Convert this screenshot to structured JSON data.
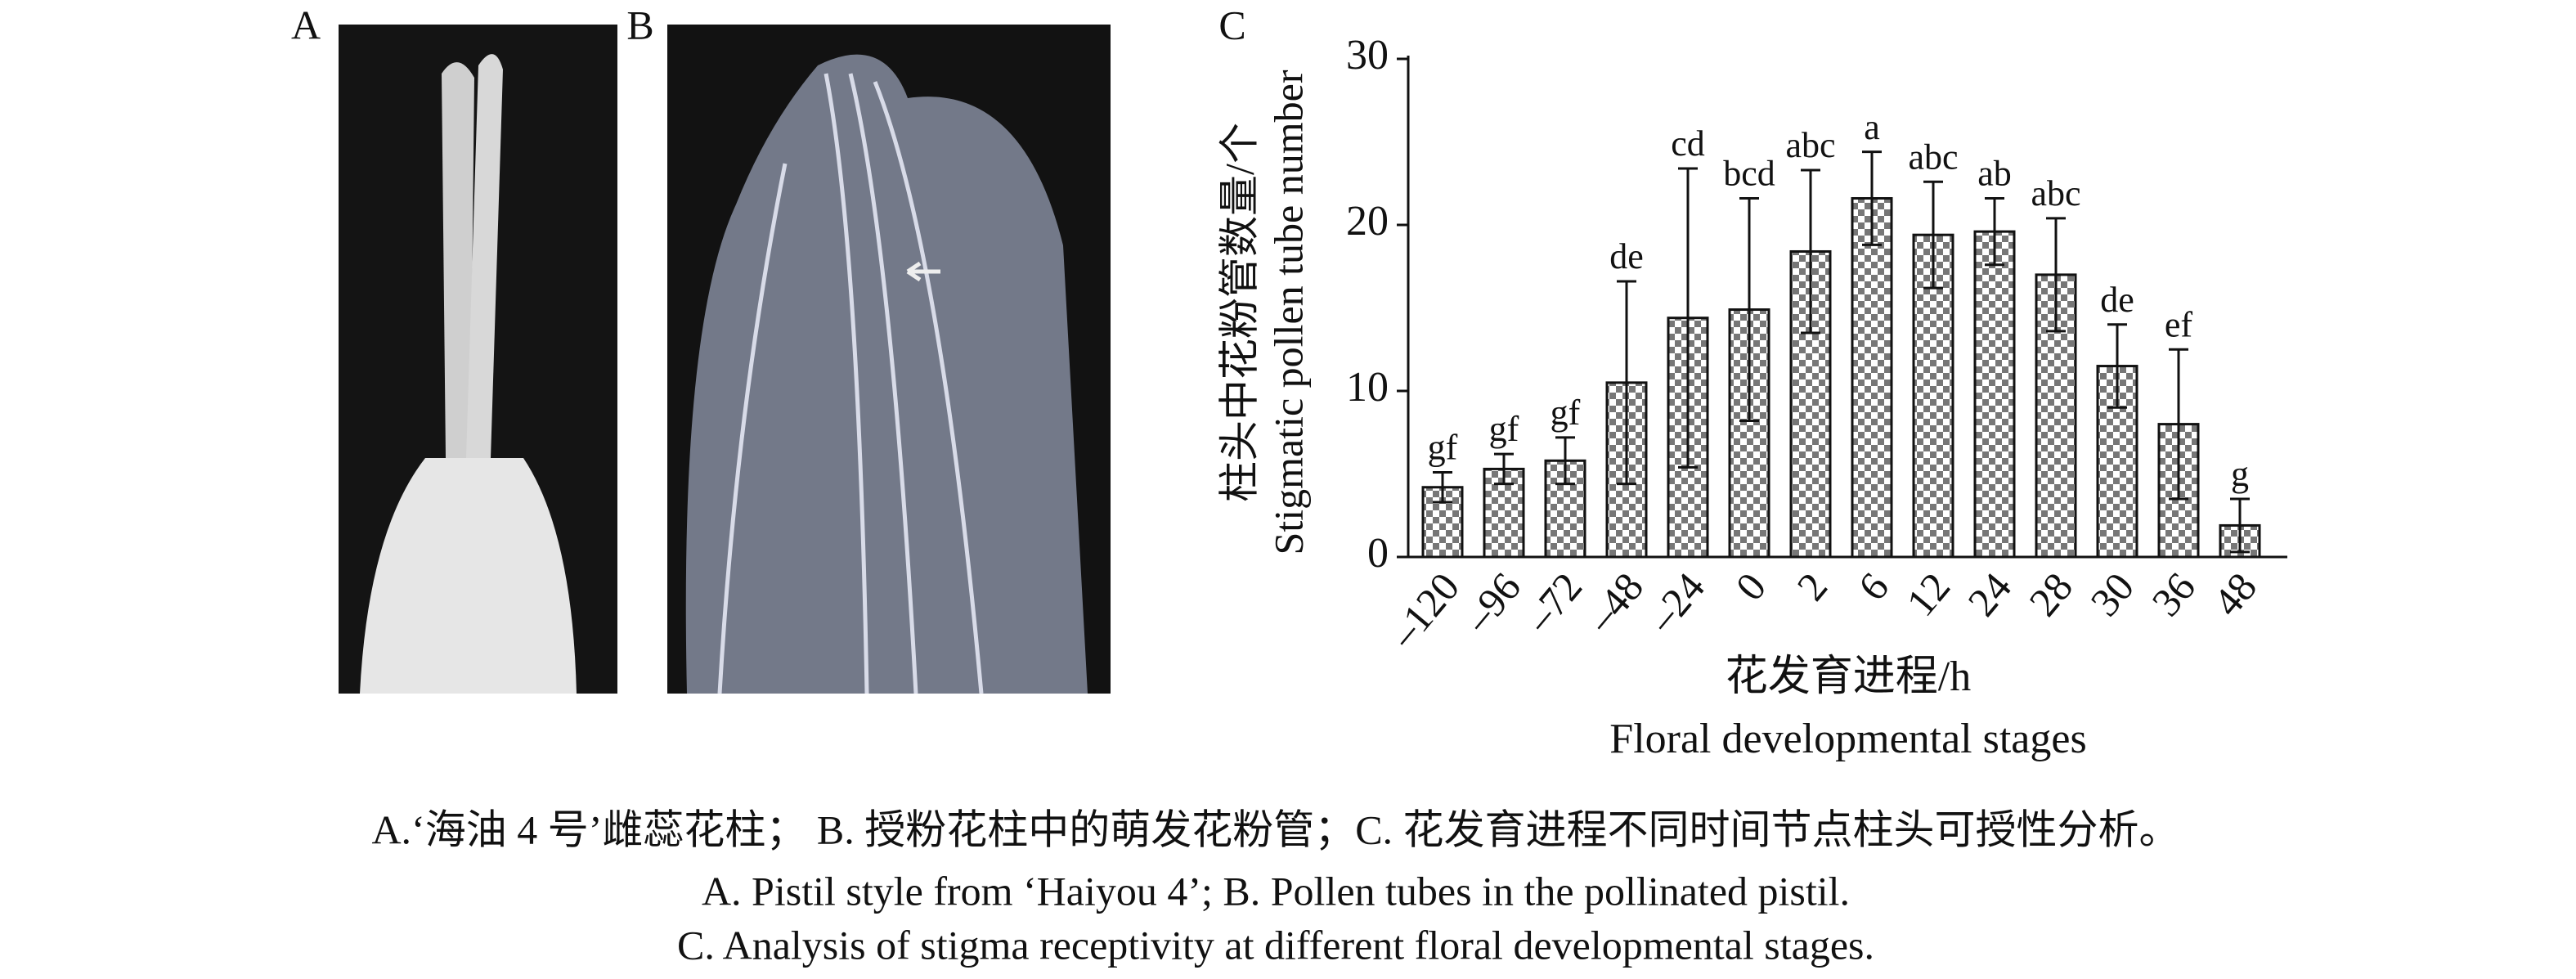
{
  "panel_labels": [
    "A",
    "B",
    "C"
  ],
  "chart_data": {
    "type": "bar",
    "ylabel": [
      "柱头中花粉管数量/个",
      "Stigmatic pollen tube number"
    ],
    "xlabel": [
      "花发育进程/h",
      "Floral developmental stages"
    ],
    "categories": [
      "–120",
      "–96",
      "–72",
      "–48",
      "–24",
      "0",
      "2",
      "6",
      "12",
      "24",
      "28",
      "30",
      "36",
      "48"
    ],
    "values": [
      4.2,
      5.3,
      5.8,
      10.5,
      14.4,
      14.9,
      18.4,
      21.6,
      19.4,
      19.6,
      17.0,
      11.5,
      8.0,
      1.9
    ],
    "errors": [
      0.9,
      0.9,
      1.4,
      6.1,
      9.0,
      6.7,
      4.9,
      2.8,
      3.2,
      2.0,
      3.4,
      2.5,
      4.5,
      1.6
    ],
    "significance": [
      "gf",
      "gf",
      "gf",
      "de",
      "cd",
      "bcd",
      "abc",
      "a",
      "abc",
      "ab",
      "abc",
      "de",
      "ef",
      "g"
    ],
    "ylim": [
      0,
      30
    ],
    "yticks": [
      0,
      10,
      20,
      30
    ]
  },
  "caption": [
    "A.‘海油 4 号’雌蕊花柱； B. 授粉花柱中的萌发花粉管；C. 花发育进程不同时间节点柱头可授性分析。",
    "A. Pistil style from ‘Haiyou 4’; B. Pollen tubes in the pollinated pistil.",
    "C. Analysis of stigma receptivity at different floral developmental stages."
  ]
}
